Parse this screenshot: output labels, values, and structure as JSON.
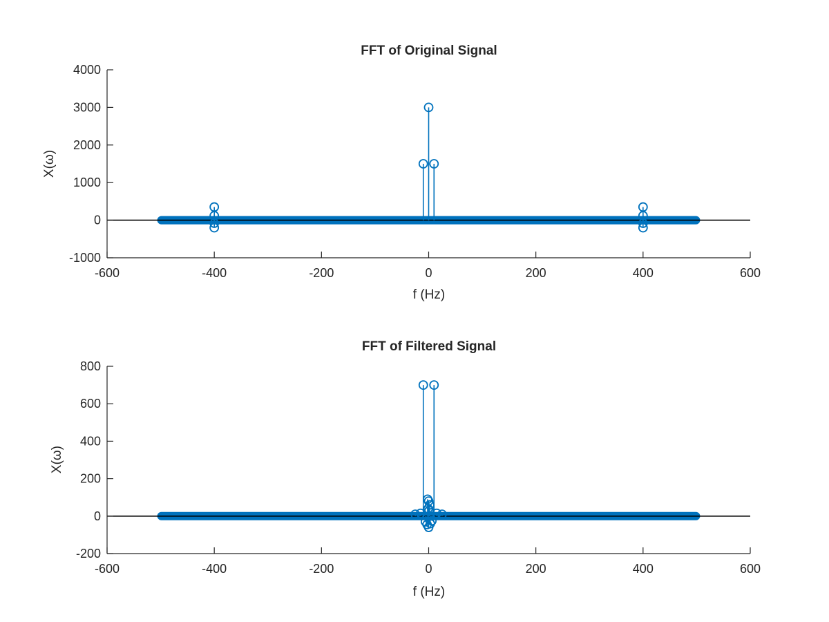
{
  "chart_data": [
    {
      "type": "stem",
      "title": "FFT of Original Signal",
      "xlabel": "f (Hz)",
      "ylabel": "X(ω)",
      "xlim": [
        -600,
        600
      ],
      "ylim": [
        -1000,
        4000
      ],
      "xticks": [
        -600,
        -400,
        -200,
        0,
        200,
        400,
        600
      ],
      "yticks": [
        -1000,
        0,
        1000,
        2000,
        3000,
        4000
      ],
      "xtick_labels": [
        "-600",
        "-400",
        "-200",
        "0",
        "200",
        "400",
        "600"
      ],
      "ytick_labels": [
        "-1000",
        "0",
        "1000",
        "2000",
        "3000",
        "4000"
      ],
      "baseline": 0,
      "series_color": "#0072BD",
      "baseline_color": "#000000",
      "dense_range": [
        -500,
        500
      ],
      "dense_value": 0,
      "points": [
        {
          "x": -400,
          "y": 350
        },
        {
          "x": -400,
          "y": -200
        },
        {
          "x": -400,
          "y": 120
        },
        {
          "x": -400,
          "y": -80
        },
        {
          "x": -10,
          "y": 1500
        },
        {
          "x": 0,
          "y": 3000
        },
        {
          "x": 10,
          "y": 1500
        },
        {
          "x": 400,
          "y": 350
        },
        {
          "x": 400,
          "y": -200
        },
        {
          "x": 400,
          "y": 120
        },
        {
          "x": 400,
          "y": -80
        }
      ]
    },
    {
      "type": "stem",
      "title": "FFT of Filtered Signal",
      "xlabel": "f (Hz)",
      "ylabel": "X(ω)",
      "xlim": [
        -600,
        600
      ],
      "ylim": [
        -200,
        800
      ],
      "xticks": [
        -600,
        -400,
        -200,
        0,
        200,
        400,
        600
      ],
      "yticks": [
        -200,
        0,
        200,
        400,
        600,
        800
      ],
      "xtick_labels": [
        "-600",
        "-400",
        "-200",
        "0",
        "200",
        "400",
        "600"
      ],
      "ytick_labels": [
        "-200",
        "0",
        "200",
        "400",
        "600",
        "800"
      ],
      "baseline": 0,
      "series_color": "#0072BD",
      "baseline_color": "#000000",
      "dense_range": [
        -500,
        500
      ],
      "dense_value": 0,
      "points": [
        {
          "x": -10,
          "y": 700
        },
        {
          "x": 10,
          "y": 700
        },
        {
          "x": -2,
          "y": 90
        },
        {
          "x": 0,
          "y": 80
        },
        {
          "x": 2,
          "y": 60
        },
        {
          "x": -1,
          "y": 40
        },
        {
          "x": 1,
          "y": 30
        },
        {
          "x": 0,
          "y": -60
        },
        {
          "x": -3,
          "y": -45
        },
        {
          "x": 3,
          "y": -40
        },
        {
          "x": -6,
          "y": -30
        },
        {
          "x": 6,
          "y": -25
        },
        {
          "x": -15,
          "y": 15
        },
        {
          "x": 15,
          "y": 15
        },
        {
          "x": -25,
          "y": 10
        },
        {
          "x": 25,
          "y": 10
        }
      ]
    }
  ]
}
